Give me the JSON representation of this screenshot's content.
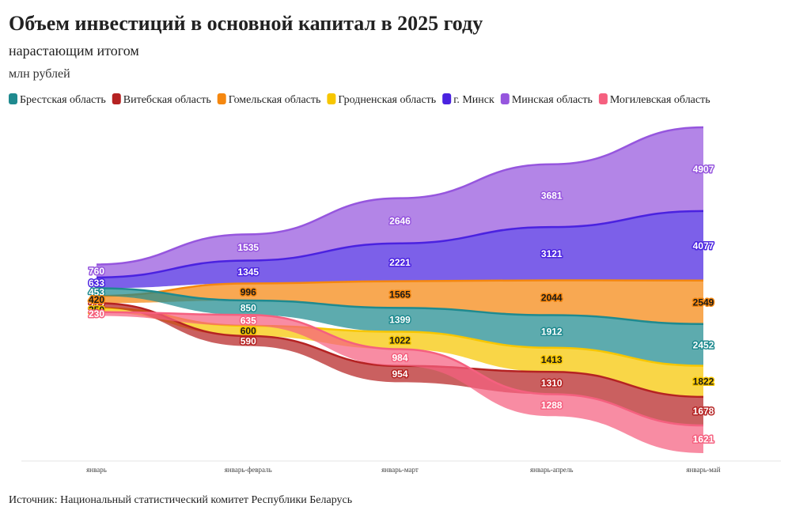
{
  "chart_data": {
    "type": "ranked-stream",
    "title": "Объем инвестиций в основной капитал в 2025 году",
    "subtitle": "нарастающим итогом",
    "unit": "млн рублей",
    "source": "Источник: Национальный статистический комитет Республики Беларусь",
    "categories": [
      "январь",
      "январь-февраль",
      "январь-март",
      "январь-апрель",
      "январь-май"
    ],
    "series": [
      {
        "name": "Брестская область",
        "color": "#1f8a8f",
        "values": [
          453,
          850,
          1399,
          1912,
          2452
        ]
      },
      {
        "name": "Витебская область",
        "color": "#b52222",
        "values": [
          272,
          590,
          954,
          1310,
          1678
        ]
      },
      {
        "name": "Гомельская область",
        "color": "#f5870f",
        "values": [
          420,
          996,
          1565,
          2044,
          2549
        ]
      },
      {
        "name": "Гродненская область",
        "color": "#f7c600",
        "values": [
          250,
          600,
          1022,
          1413,
          1822
        ]
      },
      {
        "name": "г. Минск",
        "color": "#4a22e0",
        "values": [
          633,
          1345,
          2221,
          3121,
          4077
        ]
      },
      {
        "name": "Минская область",
        "color": "#9656de",
        "values": [
          760,
          1535,
          2646,
          3681,
          4907
        ]
      },
      {
        "name": "Могилевская область",
        "color": "#f5607f",
        "values": [
          230,
          635,
          984,
          1288,
          1621
        ]
      }
    ]
  }
}
